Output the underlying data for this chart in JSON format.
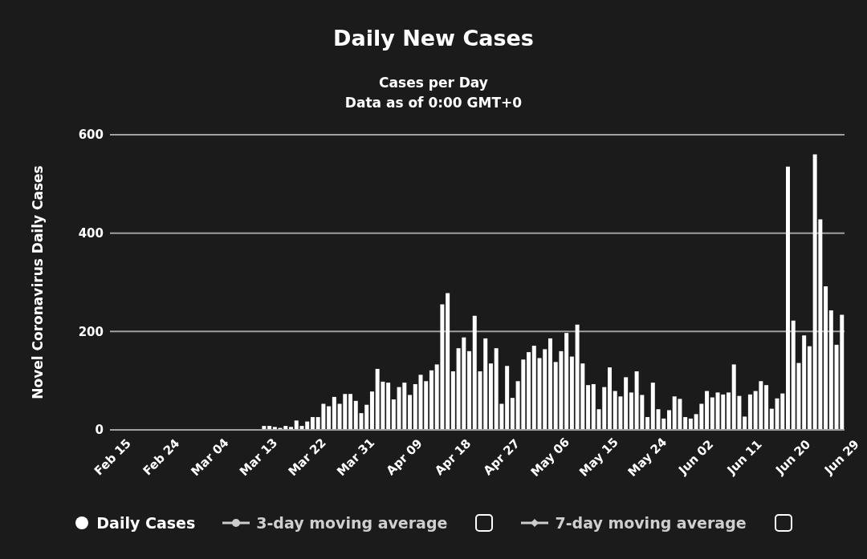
{
  "chart_data": {
    "type": "bar",
    "title": "Daily New Cases",
    "subtitle": "Cases per Day\nData as of 0:00 GMT+0",
    "ylabel": "Novel Coronavirus Daily Cases",
    "categories": [
      "Feb 15",
      null,
      null,
      null,
      null,
      null,
      null,
      null,
      null,
      "Feb 24",
      null,
      null,
      null,
      null,
      null,
      null,
      null,
      null,
      "Mar 04",
      null,
      null,
      null,
      null,
      null,
      null,
      null,
      null,
      "Mar 13",
      null,
      null,
      null,
      null,
      null,
      null,
      null,
      null,
      "Mar 22",
      null,
      null,
      null,
      null,
      null,
      null,
      null,
      null,
      "Mar 31",
      null,
      null,
      null,
      null,
      null,
      null,
      null,
      null,
      "Apr 09",
      null,
      null,
      null,
      null,
      null,
      null,
      null,
      null,
      "Apr 18",
      null,
      null,
      null,
      null,
      null,
      null,
      null,
      null,
      "Apr 27",
      null,
      null,
      null,
      null,
      null,
      null,
      null,
      null,
      "May 06",
      null,
      null,
      null,
      null,
      null,
      null,
      null,
      null,
      "May 15",
      null,
      null,
      null,
      null,
      null,
      null,
      null,
      null,
      "May 24",
      null,
      null,
      null,
      null,
      null,
      null,
      null,
      null,
      "Jun 02",
      null,
      null,
      null,
      null,
      null,
      null,
      null,
      null,
      "Jun 11",
      null,
      null,
      null,
      null,
      null,
      null,
      null,
      null,
      "Jun 20",
      null,
      null,
      null,
      null,
      null,
      null,
      null,
      null,
      "Jun 29"
    ],
    "series": [
      {
        "name": "Daily Cases",
        "marker": "circle",
        "color": "#ffffff",
        "values": [
          0,
          0,
          0,
          0,
          0,
          0,
          0,
          0,
          0,
          0,
          0,
          0,
          0,
          0,
          0,
          0,
          0,
          0,
          0,
          0,
          0,
          0,
          0,
          0,
          0,
          0,
          0,
          0,
          8,
          8,
          6,
          4,
          8,
          6,
          19,
          8,
          17,
          26,
          26,
          53,
          48,
          67,
          53,
          73,
          73,
          59,
          34,
          51,
          78,
          124,
          98,
          96,
          62,
          87,
          96,
          71,
          93,
          112,
          99,
          121,
          133,
          255,
          278,
          119,
          166,
          188,
          160,
          232,
          119,
          186,
          135,
          166,
          53,
          130,
          65,
          99,
          143,
          158,
          171,
          146,
          164,
          186,
          138,
          160,
          197,
          149,
          214,
          135,
          91,
          93,
          42,
          87,
          127,
          79,
          68,
          107,
          76,
          119,
          71,
          26,
          96,
          42,
          23,
          40,
          68,
          63,
          26,
          23,
          32,
          53,
          79,
          66,
          76,
          72,
          76,
          133,
          69,
          27,
          72,
          79,
          99,
          91,
          43,
          64,
          74,
          535,
          222,
          136,
          192,
          170,
          560,
          428,
          292,
          243,
          173,
          234
        ]
      },
      {
        "name": "3-day moving average",
        "type": "line",
        "marker": "circle",
        "color": "#cccccc",
        "values": [
          null,
          null,
          null,
          null,
          null,
          null,
          null,
          null,
          null,
          null,
          null,
          null,
          null,
          null,
          null,
          null,
          null,
          null,
          null,
          null,
          null,
          null,
          null,
          null,
          null,
          null,
          null,
          null,
          null,
          null,
          null,
          null,
          null,
          null,
          null,
          null,
          null,
          null,
          null,
          null,
          null,
          null,
          null,
          null,
          null,
          null,
          null,
          null,
          null,
          null,
          null,
          null,
          null,
          null,
          null,
          null,
          null,
          null,
          null,
          null,
          null,
          null,
          null,
          null,
          null,
          null,
          null,
          null,
          null,
          null,
          null,
          null,
          null,
          null,
          null,
          null,
          null,
          null,
          null,
          null,
          null,
          null,
          null,
          null,
          null,
          null,
          null,
          null,
          null,
          null,
          null,
          null,
          null,
          null,
          null,
          null,
          null,
          null,
          null,
          null,
          null,
          null,
          null,
          null,
          null,
          null,
          null,
          null,
          null,
          null,
          null,
          null,
          null,
          null,
          null,
          null,
          null,
          null,
          null,
          null,
          null,
          null,
          null,
          null,
          null,
          null,
          null,
          null,
          null,
          null,
          null,
          null,
          null,
          null,
          null,
          null
        ]
      },
      {
        "name": "7-day moving average",
        "type": "line",
        "marker": "diamond",
        "color": "#cccccc",
        "values": [
          null,
          null,
          null,
          null,
          null,
          null,
          null,
          null,
          null,
          null,
          null,
          null,
          null,
          null,
          null,
          null,
          null,
          null,
          null,
          null,
          null,
          null,
          null,
          null,
          null,
          null,
          null,
          null,
          null,
          null,
          null,
          null,
          null,
          null,
          null,
          null,
          null,
          null,
          null,
          null,
          null,
          null,
          null,
          null,
          null,
          null,
          null,
          null,
          null,
          null,
          null,
          null,
          null,
          null,
          null,
          null,
          null,
          null,
          null,
          null,
          null,
          null,
          null,
          null,
          null,
          null,
          null,
          null,
          null,
          null,
          null,
          null,
          null,
          null,
          null,
          null,
          null,
          null,
          null,
          null,
          null,
          null,
          null,
          null,
          null,
          null,
          null,
          null,
          null,
          null,
          null,
          null,
          null,
          null,
          null,
          null,
          null,
          null,
          null,
          null,
          null,
          null,
          null,
          null,
          null,
          null,
          null,
          null,
          null,
          null,
          null,
          null,
          null,
          null,
          null,
          null,
          null,
          null,
          null,
          null,
          null,
          null,
          null,
          null,
          null,
          null,
          null,
          null,
          null,
          null,
          null,
          null,
          null,
          null,
          null,
          null
        ]
      }
    ],
    "ylim": [
      0,
      600
    ],
    "yticks": [
      0,
      200,
      400,
      600
    ],
    "grid": "y",
    "legend": "bottom"
  }
}
